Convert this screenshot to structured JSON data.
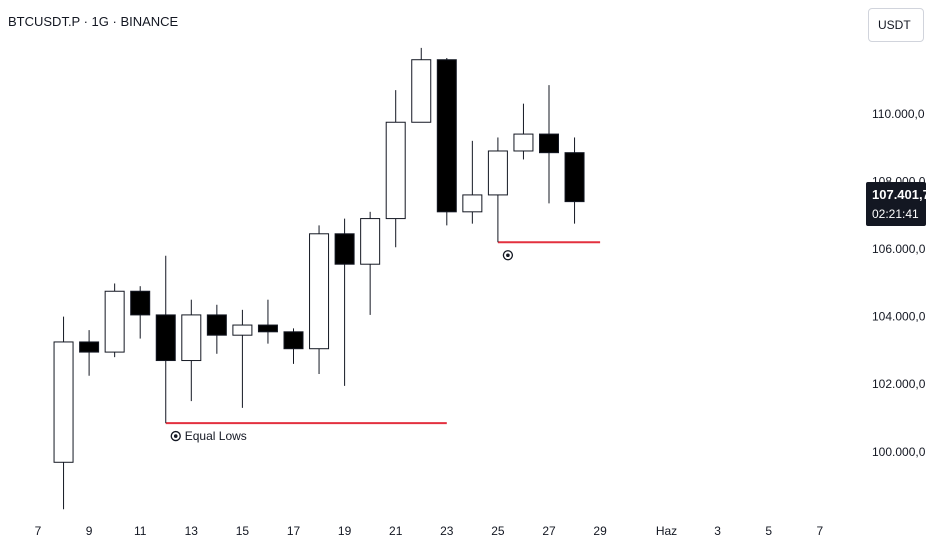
{
  "header": {
    "symbol": "BTCUSDT.P · 1G · BINANCE",
    "currency": "USDT"
  },
  "price_tag": {
    "price": "107.401,7",
    "countdown": "02:21:41"
  },
  "chart_data": {
    "type": "candlestick",
    "y_ticks": [
      {
        "value": 100000,
        "label": "100.000,0"
      },
      {
        "value": 102000,
        "label": "102.000,0"
      },
      {
        "value": 104000,
        "label": "104.000,0"
      },
      {
        "value": 106000,
        "label": "106.000,0"
      },
      {
        "value": 108000,
        "label": "108.000,0"
      },
      {
        "value": 110000,
        "label": "110.000,0"
      }
    ],
    "x_ticks": [
      {
        "index": 0,
        "label": "7"
      },
      {
        "index": 2,
        "label": "9"
      },
      {
        "index": 4,
        "label": "11"
      },
      {
        "index": 6,
        "label": "13"
      },
      {
        "index": 8,
        "label": "15"
      },
      {
        "index": 10,
        "label": "17"
      },
      {
        "index": 12,
        "label": "19"
      },
      {
        "index": 14,
        "label": "21"
      },
      {
        "index": 16,
        "label": "23"
      },
      {
        "index": 18,
        "label": "25"
      },
      {
        "index": 20,
        "label": "27"
      },
      {
        "index": 22,
        "label": "29"
      },
      {
        "index": 24.6,
        "label": "Haz"
      },
      {
        "index": 26.6,
        "label": "3"
      },
      {
        "index": 28.6,
        "label": "5"
      },
      {
        "index": 30.6,
        "label": "7"
      }
    ],
    "candles": [
      {
        "day": "8",
        "open": 99690,
        "high": 104000,
        "low": 98300,
        "close": 103250
      },
      {
        "day": "9",
        "open": 103250,
        "high": 103600,
        "low": 102250,
        "close": 102950
      },
      {
        "day": "10",
        "open": 102950,
        "high": 104980,
        "low": 102800,
        "close": 104750
      },
      {
        "day": "11",
        "open": 104750,
        "high": 104900,
        "low": 103350,
        "close": 104050
      },
      {
        "day": "12",
        "open": 104050,
        "high": 105800,
        "low": 100850,
        "close": 102700
      },
      {
        "day": "13",
        "open": 102700,
        "high": 104500,
        "low": 101500,
        "close": 104050
      },
      {
        "day": "14",
        "open": 104050,
        "high": 104350,
        "low": 102900,
        "close": 103450
      },
      {
        "day": "15",
        "open": 103450,
        "high": 104200,
        "low": 101300,
        "close": 103750
      },
      {
        "day": "16",
        "open": 103750,
        "high": 104500,
        "low": 103200,
        "close": 103550
      },
      {
        "day": "17",
        "open": 103550,
        "high": 103650,
        "low": 102600,
        "close": 103050
      },
      {
        "day": "18",
        "open": 103050,
        "high": 106700,
        "low": 102300,
        "close": 106450
      },
      {
        "day": "19",
        "open": 106450,
        "high": 106900,
        "low": 101950,
        "close": 105550
      },
      {
        "day": "20",
        "open": 105550,
        "high": 107100,
        "low": 104050,
        "close": 106900
      },
      {
        "day": "21",
        "open": 106900,
        "high": 110700,
        "low": 106050,
        "close": 109750
      },
      {
        "day": "22",
        "open": 109750,
        "high": 111950,
        "low": 109750,
        "close": 111600
      },
      {
        "day": "23",
        "open": 111600,
        "high": 111650,
        "low": 106700,
        "close": 107100
      },
      {
        "day": "24",
        "open": 107100,
        "high": 109200,
        "low": 106750,
        "close": 107600
      },
      {
        "day": "25",
        "open": 107600,
        "high": 109300,
        "low": 106200,
        "close": 108900
      },
      {
        "day": "26",
        "open": 108900,
        "high": 110300,
        "low": 108650,
        "close": 109400
      },
      {
        "day": "27",
        "open": 109400,
        "high": 110850,
        "low": 107350,
        "close": 108850
      },
      {
        "day": "28",
        "open": 108850,
        "high": 109300,
        "low": 106750,
        "close": 107401.7
      }
    ],
    "annotations": [
      {
        "label": "Equal Lows",
        "value": 100850,
        "from_index": 5,
        "to_index": 16
      },
      {
        "label": "",
        "value": 106200,
        "from_index": 18,
        "to_index": 22
      }
    ],
    "current_price": 107401.7,
    "colors": {
      "bull_body": "#ffffff",
      "bear_body": "#000000",
      "wick": "#131722",
      "level_line": "#e3303f"
    }
  }
}
